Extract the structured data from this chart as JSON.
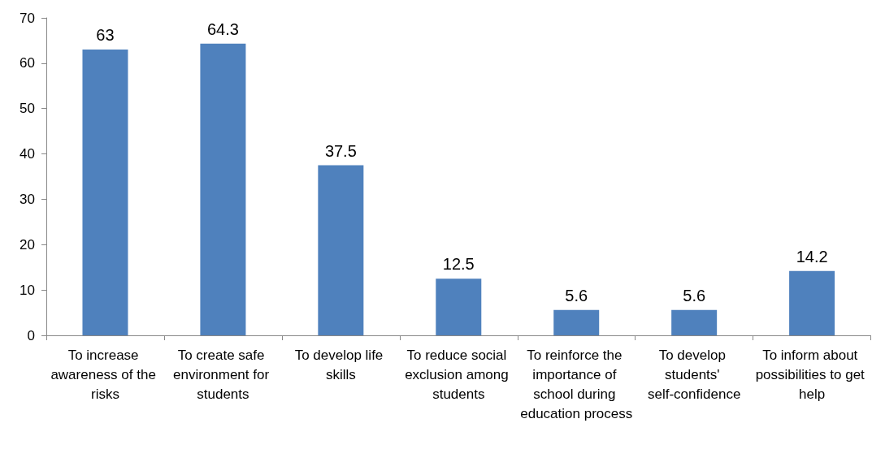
{
  "chart_data": {
    "type": "bar",
    "categories": [
      "To increase awareness of the risks",
      "To create safe environment for students",
      "To develop life skills",
      "To reduce social exclusion among students",
      "To reinforce the importance of school during education process",
      "To develop students' self-confidence",
      "To inform about possibilities to get help"
    ],
    "values": [
      63,
      64.3,
      37.5,
      12.5,
      5.6,
      5.6,
      14.2
    ],
    "color": "#4f81bd",
    "ylim": [
      0,
      70
    ],
    "yticks": [
      0,
      10,
      20,
      30,
      40,
      50,
      60,
      70
    ],
    "data_labels": true,
    "grid": false
  }
}
